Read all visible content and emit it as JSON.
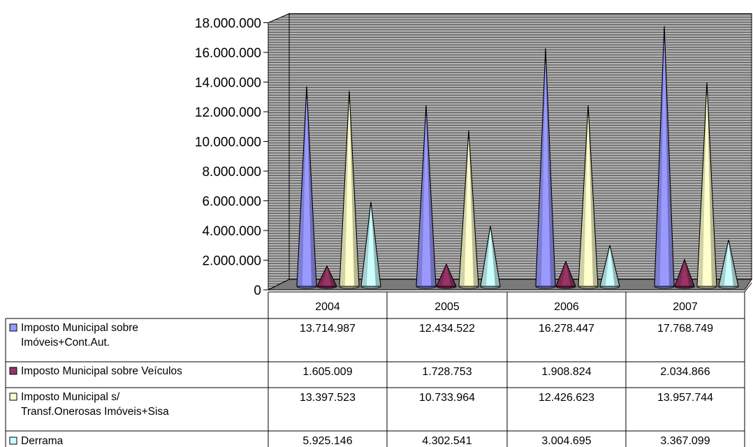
{
  "chart_data": {
    "type": "bar",
    "mark_shape": "cone-3d",
    "title": "",
    "xlabel": "",
    "ylabel": "",
    "ylim": [
      0,
      18000000
    ],
    "ytick_values": [
      0,
      2000000,
      4000000,
      6000000,
      8000000,
      10000000,
      12000000,
      14000000,
      16000000,
      18000000
    ],
    "ytick_labels": [
      "0",
      "2.000.000",
      "4.000.000",
      "6.000.000",
      "8.000.000",
      "10.000.000",
      "12.000.000",
      "14.000.000",
      "16.000.000",
      "18.000.000"
    ],
    "grid": true,
    "legend_placement": "data-table-bottom",
    "categories": [
      "2004",
      "2005",
      "2006",
      "2007"
    ],
    "series": [
      {
        "name": "Imposto Municipal sobre Imóveis+Cont.Aut.",
        "name_lines": [
          "Imposto Municipal sobre",
          "Imóveis+Cont.Aut."
        ],
        "color": "#9999ff",
        "values": [
          13714987,
          12434522,
          16278447,
          17768749
        ],
        "value_labels": [
          "13.714.987",
          "12.434.522",
          "16.278.447",
          "17.768.749"
        ]
      },
      {
        "name": "Imposto Municipal sobre Veículos",
        "name_lines": [
          "Imposto Municipal sobre Veículos"
        ],
        "color": "#993366",
        "values": [
          1605009,
          1728753,
          1908824,
          2034866
        ],
        "value_labels": [
          "1.605.009",
          "1.728.753",
          "1.908.824",
          "2.034.866"
        ]
      },
      {
        "name": "Imposto Municipal s/ Transf.Onerosas Imóveis+Sisa",
        "name_lines": [
          "Imposto Municipal s/",
          "Transf.Onerosas Imóveis+Sisa"
        ],
        "color": "#ffffcc",
        "values": [
          13397523,
          10733964,
          12426623,
          13957744
        ],
        "value_labels": [
          "13.397.523",
          "10.733.964",
          "12.426.623",
          "13.957.744"
        ]
      },
      {
        "name": "Derrama",
        "name_lines": [
          "Derrama"
        ],
        "color": "#ccffff",
        "values": [
          5925146,
          4302541,
          3004695,
          3367099
        ],
        "value_labels": [
          "5.925.146",
          "4.302.541",
          "3.004.695",
          "3.367.099"
        ]
      }
    ]
  }
}
